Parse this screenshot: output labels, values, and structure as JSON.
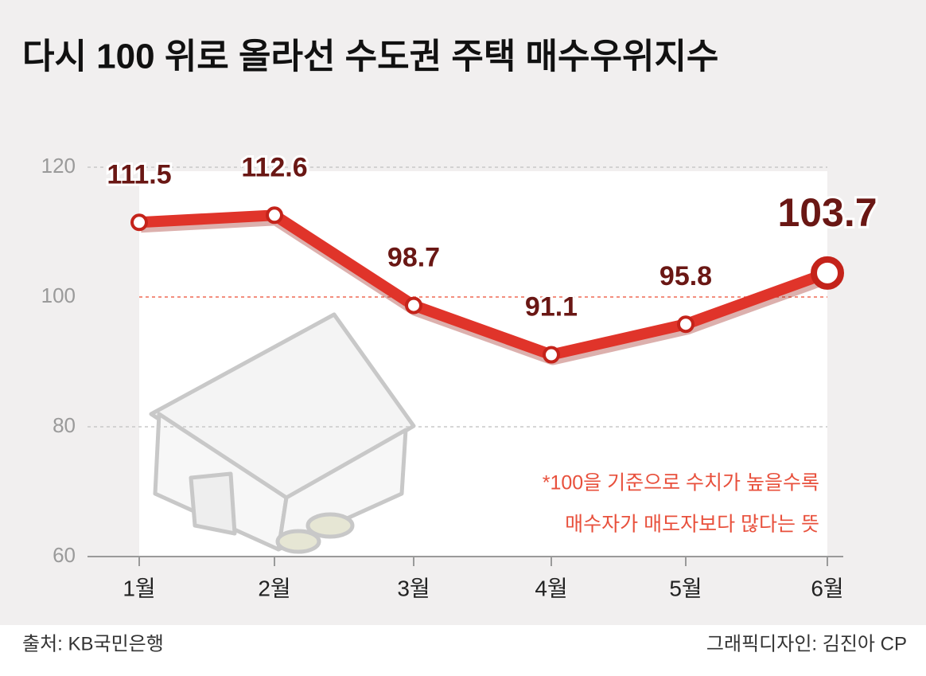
{
  "chart_data": {
    "type": "line",
    "title": "다시 100 위로 올라선 수도권 주택 매수우위지수",
    "categories": [
      "1월",
      "2월",
      "3월",
      "4월",
      "5월",
      "6월"
    ],
    "values": [
      111.5,
      112.6,
      98.7,
      91.1,
      95.8,
      103.7
    ],
    "color": "#e0342a",
    "ylim": [
      60,
      120
    ],
    "yticks": [
      60,
      80,
      100,
      120
    ],
    "reference_line": 100,
    "annotations": [
      "*100을 기준으로 수치가 높을수록",
      "매수자가 매도자보다 많다는 뜻"
    ],
    "source": "출처: KB국민은행",
    "credit": "그래픽디자인: 김진아 CP"
  }
}
